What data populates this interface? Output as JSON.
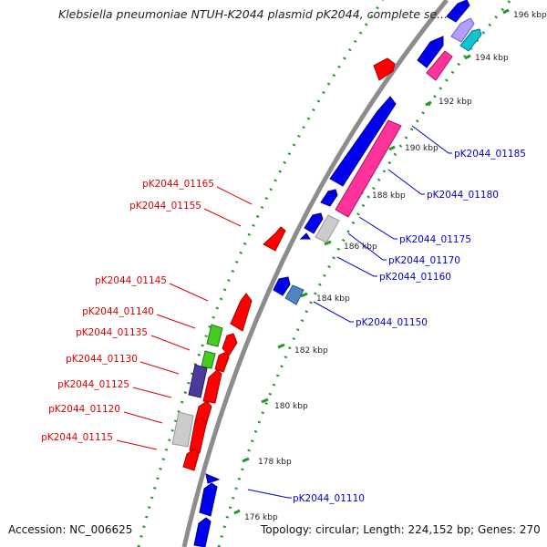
{
  "title": "Klebsiella pneumoniae NTUH-K2044 plasmid pK2044, complete se...",
  "accession": "Accession: NC_006625",
  "topology": "Topology: circular; Length: 224,152 bp; Genes: 270",
  "colors": {
    "backbone": "#8c8c8c",
    "forward_red": "#ff0000",
    "reverse_blue": "#0000ee",
    "pink": "#ff3399",
    "cyan": "#11c4d4",
    "green": "#44cc22",
    "purple": "#4a3a9a",
    "gray": "#cccccc",
    "steel": "#4f86c0",
    "tick_dots": "#229922",
    "label_red": "#dd0000",
    "label_blue": "#0000cc"
  },
  "kbp_labels": [
    "176 kbp",
    "178 kbp",
    "180 kbp",
    "182 kbp",
    "184 kbp",
    "186 kbp",
    "188 kbp",
    "190 kbp",
    "192 kbp",
    "194 kbp",
    "196 kbp"
  ],
  "gene_labels_left": [
    "pK2044_01165",
    "pK2044_01155",
    "pK2044_01145",
    "pK2044_01140",
    "pK2044_01135",
    "pK2044_01130",
    "pK2044_01125",
    "pK2044_01120",
    "pK2044_01115"
  ],
  "gene_labels_right": [
    "pK2044_01185",
    "pK2044_01180",
    "pK2044_01175",
    "pK2044_01170",
    "pK2044_01160",
    "pK2044_01150",
    "pK2044_01110"
  ]
}
